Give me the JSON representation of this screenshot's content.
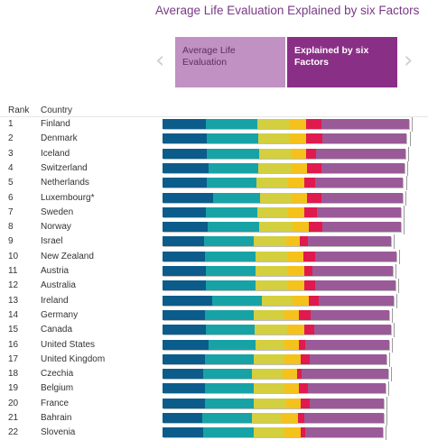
{
  "header": {
    "title": "Average Life Evaluation Explained by six Factors",
    "tab_left": "Average Life Evaluation",
    "tab_right": "Explained by six Factors",
    "col_rank": "Rank",
    "col_country": "Country"
  },
  "icons": {
    "prev": "chevron-left-icon",
    "next": "chevron-right-icon"
  },
  "colors": {
    "segments": [
      "#0b5c8a",
      "#17a3a6",
      "#d3cf3f",
      "#f5c21b",
      "#e0194e",
      "#9a5a98"
    ],
    "tab_left": "#c091c2",
    "tab_right": "#8a2f86",
    "title": "#7a3a86"
  },
  "chart_data": {
    "type": "bar",
    "orientation": "horizontal",
    "stacked": true,
    "axis_max": 7.9,
    "rows": [
      {
        "rank": "1",
        "country": "Finland",
        "segments": [
          1.34,
          1.59,
          0.99,
          0.53,
          0.45,
          2.72
        ],
        "score": 7.63
      },
      {
        "rank": "2",
        "country": "Denmark",
        "segments": [
          1.38,
          1.57,
          1.0,
          0.49,
          0.5,
          2.61
        ],
        "score": 7.56
      },
      {
        "rank": "3",
        "country": "Iceland",
        "segments": [
          1.38,
          1.62,
          0.98,
          0.47,
          0.31,
          2.75
        ],
        "score": 7.5
      },
      {
        "rank": "4",
        "country": "Switzerland",
        "segments": [
          1.42,
          1.55,
          1.02,
          0.49,
          0.43,
          2.58
        ],
        "score": 7.49
      },
      {
        "rank": "5",
        "country": "Netherlands",
        "segments": [
          1.38,
          1.52,
          0.98,
          0.49,
          0.35,
          2.72
        ],
        "score": 7.44
      },
      {
        "rank": "6",
        "country": "Luxembourg*",
        "segments": [
          1.55,
          1.47,
          0.97,
          0.49,
          0.43,
          2.51
        ],
        "score": 7.42
      },
      {
        "rank": "7",
        "country": "Sweden",
        "segments": [
          1.35,
          1.58,
          0.96,
          0.5,
          0.38,
          2.61
        ],
        "score": 7.38
      },
      {
        "rank": "8",
        "country": "Norway",
        "segments": [
          1.4,
          1.6,
          1.02,
          0.5,
          0.42,
          2.43
        ],
        "score": 7.37
      },
      {
        "rank": "9",
        "country": "Israel",
        "segments": [
          1.28,
          1.55,
          1.0,
          0.42,
          0.24,
          2.57
        ],
        "score": 7.06
      },
      {
        "rank": "10",
        "country": "New Zealand",
        "segments": [
          1.32,
          1.55,
          0.98,
          0.5,
          0.38,
          2.49
        ],
        "score": 7.22
      },
      {
        "rank": "11",
        "country": "Austria",
        "segments": [
          1.35,
          1.52,
          0.99,
          0.52,
          0.26,
          2.48
        ],
        "score": 7.12
      },
      {
        "rank": "12",
        "country": "Australia",
        "segments": [
          1.35,
          1.52,
          1.01,
          0.51,
          0.32,
          2.49
        ],
        "score": 7.2
      },
      {
        "rank": "13",
        "country": "Ireland",
        "segments": [
          1.53,
          1.55,
          0.95,
          0.48,
          0.32,
          2.31
        ],
        "score": 7.14
      },
      {
        "rank": "14",
        "country": "Germany",
        "segments": [
          1.32,
          1.5,
          0.96,
          0.43,
          0.37,
          2.43
        ],
        "score": 7.01
      },
      {
        "rank": "15",
        "country": "Canada",
        "segments": [
          1.33,
          1.53,
          0.98,
          0.53,
          0.33,
          2.36
        ],
        "score": 7.06
      },
      {
        "rank": "16",
        "country": "United States",
        "segments": [
          1.43,
          1.45,
          0.9,
          0.44,
          0.2,
          2.58
        ],
        "score": 7.0
      },
      {
        "rank": "17",
        "country": "United Kingdom",
        "segments": [
          1.3,
          1.53,
          0.95,
          0.5,
          0.28,
          2.36
        ],
        "score": 6.92
      },
      {
        "rank": "18",
        "country": "Czechia",
        "segments": [
          1.26,
          1.5,
          0.96,
          0.43,
          0.16,
          2.66
        ],
        "score": 6.97
      },
      {
        "rank": "19",
        "country": "Belgium",
        "segments": [
          1.31,
          1.5,
          0.95,
          0.45,
          0.29,
          2.39
        ],
        "score": 6.89
      },
      {
        "rank": "20",
        "country": "France",
        "segments": [
          1.3,
          1.52,
          1.0,
          0.44,
          0.29,
          2.28
        ],
        "score": 6.83
      },
      {
        "rank": "21",
        "country": "Bahrain",
        "segments": [
          1.24,
          1.52,
          0.92,
          0.51,
          0.2,
          2.45
        ],
        "score": 6.84
      },
      {
        "rank": "22",
        "country": "Slovenia",
        "segments": [
          1.27,
          1.56,
          0.93,
          0.51,
          0.15,
          2.38
        ],
        "score": 6.8
      }
    ]
  }
}
